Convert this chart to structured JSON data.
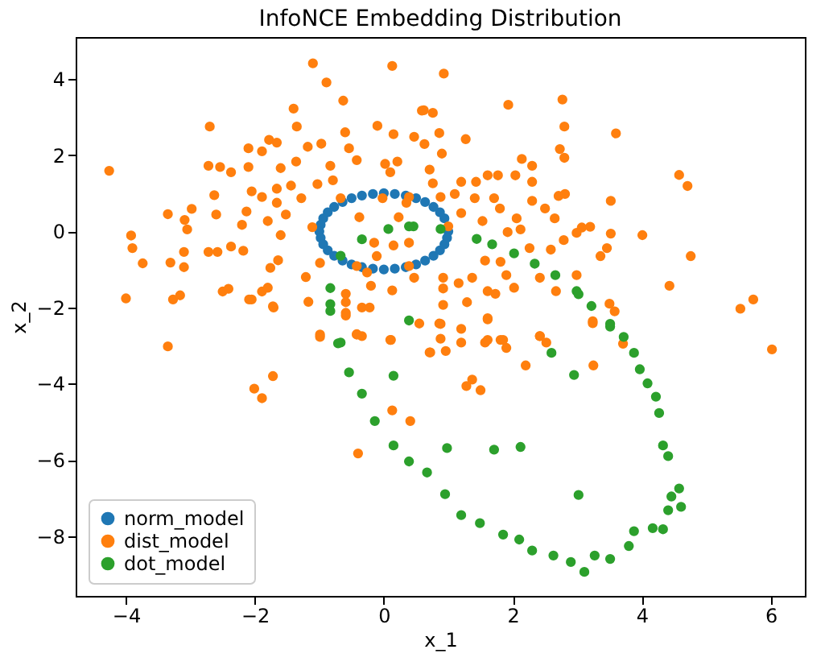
{
  "chart_data": {
    "type": "scatter",
    "title": "InfoNCE Embedding Distribution",
    "xlabel": "x_1",
    "ylabel": "x_2",
    "xlim": [
      -4.78,
      6.53
    ],
    "ylim": [
      -9.57,
      5.1
    ],
    "xticks": [
      -4,
      -2,
      0,
      2,
      4,
      6
    ],
    "yticks": [
      -8,
      -6,
      -4,
      -2,
      0,
      2,
      4
    ],
    "grid": false,
    "legend": "bottom left",
    "marker": "circle",
    "series": [
      {
        "name": "norm_model",
        "color": "#1f77b4",
        "x": [
          1,
          0.94,
          0.87,
          0.77,
          0.64,
          0.5,
          0.34,
          0.17,
          0,
          -0.17,
          -0.34,
          -0.5,
          -0.64,
          -0.77,
          -0.87,
          -0.94,
          -0.98,
          -1,
          -0.98,
          -0.94,
          -0.87,
          -0.77,
          -0.64,
          -0.5,
          -0.34,
          -0.17,
          0,
          0.17,
          0.34,
          0.5,
          0.64,
          0.77,
          0.87,
          0.94,
          0.98
        ],
        "values": [
          0,
          0.34,
          0.5,
          0.64,
          0.77,
          0.87,
          0.94,
          0.98,
          1,
          0.98,
          0.94,
          0.87,
          0.77,
          0.64,
          0.5,
          0.34,
          0.17,
          0,
          -0.17,
          -0.34,
          -0.5,
          -0.64,
          -0.77,
          -0.87,
          -0.94,
          -0.98,
          -1,
          -0.98,
          -0.94,
          -0.87,
          -0.77,
          -0.64,
          -0.5,
          -0.34,
          -0.17
        ]
      },
      {
        "name": "dist_model",
        "color": "#ff7f0e",
        "x": [
          -4.26,
          -1.1,
          -0.89,
          -0.63,
          -1.4,
          -1.35,
          -2.7,
          -1.78,
          -1.66,
          -2.1,
          -1.89,
          -1.18,
          -0.97,
          -0.6,
          -0.54,
          -0.42,
          -2.72,
          -2.54,
          -2.37,
          -2.1,
          -1.6,
          -1.36,
          -0.83,
          -2.63,
          -2.05,
          -1.89,
          -1.66,
          -1.44,
          -1.28,
          -1.03,
          -0.79,
          -0.67,
          -1.66,
          -3.35,
          -3.09,
          -2.98,
          -3.05,
          -2.6,
          -2.13,
          -1.8,
          -1.52,
          -2.2,
          -1.11,
          -3.92,
          -3.9,
          -3.74,
          -3.31,
          -3.1,
          -3.1,
          -2.72,
          -2.58,
          -2.37,
          -2.18,
          -1.6,
          -1.64,
          -1.76,
          -4.0,
          -3.27,
          -3.16,
          -2.5,
          -2.41,
          -2.05,
          -1.89,
          -1.8,
          -1.71,
          -1.21,
          -1.17,
          -0.99,
          -0.99,
          -3.35,
          -0.42,
          -0.26,
          -0.2,
          -0.34,
          -0.22,
          -0.59,
          -0.59,
          -0.42,
          -0.34,
          0.1,
          0.13,
          -0.11,
          -0.15,
          0.15,
          0.39,
          0.47,
          0.39,
          0.23,
          -0.38,
          -0.02,
          0.1,
          0.02,
          -0.1,
          0.15,
          0.21,
          0.47,
          0.59,
          0.13,
          0.39,
          0.35,
          0.93,
          1.93,
          2.77,
          0.62,
          0.76,
          2.8,
          1.27,
          0.86,
          0.63,
          0.9,
          3.6,
          2.73,
          2.8,
          2.14,
          2.3,
          2.3,
          2.04,
          1.61,
          1.77,
          1.43,
          1.2,
          0.71,
          0.76,
          1.1,
          1.41,
          0.88,
          1.71,
          1.8,
          2.3,
          2.5,
          2.71,
          2.81,
          2.65,
          3.52,
          4.58,
          4.71,
          2.06,
          1.2,
          1.53,
          1.0,
          2.12,
          1.92,
          3.07,
          3.2,
          2.99,
          2.79,
          3.52,
          4.01,
          3.46,
          3.36,
          2.59,
          2.26,
          1.57,
          1.81,
          1.9,
          1.37,
          1.16,
          0.92,
          0.92,
          0.92,
          1.29,
          1.61,
          1.73,
          2.02,
          2.42,
          2.67,
          2.99,
          4.76,
          4.43,
          5.53,
          5.73,
          6.02,
          1.61,
          1.2,
          0.86,
          0.55,
          0.88,
          0.71,
          1.57,
          1.81,
          1.9,
          2.42,
          3.24,
          -2.01,
          -1.89,
          -1.72,
          -0.99,
          -1.72,
          -2.09,
          -0.4,
          0.13,
          0.41,
          0.11,
          0.72,
          0.96,
          0.88,
          1.2,
          1.28,
          1.37,
          1.5,
          1.61,
          1.61,
          1.85,
          2.2,
          2.42,
          2.52,
          3.25,
          3.24,
          3.5,
          3.58,
          3.71,
          -0.59,
          -0.59,
          -0.42
        ],
        "values": [
          1.59,
          4.41,
          3.91,
          3.43,
          3.22,
          2.75,
          2.75,
          2.4,
          2.33,
          2.18,
          2.1,
          2.22,
          2.3,
          2.6,
          2.18,
          1.87,
          1.72,
          1.69,
          1.55,
          1.69,
          1.66,
          1.83,
          1.72,
          0.95,
          1.05,
          0.9,
          1.12,
          1.2,
          0.87,
          1.24,
          1.34,
          0.87,
          0.75,
          0.45,
          0.3,
          0.59,
          0.05,
          0.44,
          0.52,
          0.27,
          0.44,
          0.17,
          0.11,
          -0.11,
          -0.44,
          -0.84,
          -0.82,
          -0.54,
          -0.94,
          -0.54,
          -0.54,
          -0.4,
          -0.51,
          -0.1,
          -0.76,
          -0.96,
          -1.76,
          -1.79,
          -1.68,
          -1.58,
          -1.51,
          -1.79,
          -1.58,
          -1.48,
          -2.0,
          -1.2,
          -1.85,
          -0.83,
          -2.77,
          -3.02,
          -0.91,
          -1.08,
          -1.43,
          -2.0,
          -2.0,
          -1.64,
          -2.21,
          -2.7,
          -2.75,
          -2.85,
          -1.55,
          -0.65,
          -0.3,
          -0.37,
          -0.91,
          -1.22,
          -0.3,
          0.37,
          0.37,
          0.87,
          1.55,
          1.77,
          2.77,
          2.55,
          1.83,
          2.48,
          3.17,
          4.34,
          0.9,
          0.75,
          4.14,
          3.32,
          3.46,
          3.18,
          3.11,
          2.75,
          2.42,
          2.58,
          2.29,
          2.04,
          2.57,
          2.16,
          1.93,
          1.9,
          1.72,
          1.3,
          1.47,
          1.47,
          1.47,
          1.3,
          1.3,
          1.62,
          1.26,
          0.98,
          0.87,
          0.9,
          0.87,
          0.6,
          0.8,
          0.6,
          0.93,
          0.98,
          0.34,
          0.8,
          1.48,
          1.19,
          0.34,
          0.48,
          0.27,
          0.13,
          0.05,
          -0.02,
          0.1,
          0.12,
          -0.04,
          -0.23,
          -0.06,
          -0.1,
          -0.44,
          -0.65,
          -0.48,
          -0.44,
          -0.77,
          -0.8,
          -1.15,
          -1.22,
          -1.36,
          -1.22,
          -1.5,
          -1.93,
          -1.86,
          -1.57,
          -1.64,
          -1.48,
          -1.22,
          -1.57,
          -1.15,
          -0.65,
          -1.43,
          -2.03,
          -1.79,
          -3.1,
          -2.31,
          -2.56,
          -2.42,
          -2.42,
          -2.82,
          -3.18,
          -2.92,
          -2.85,
          -3.06,
          -2.75,
          -2.41,
          -4.13,
          -4.38,
          -3.8,
          -2.71,
          -1.97,
          -1.79,
          -5.83,
          -4.7,
          -4.98,
          -2.85,
          -3.18,
          -3.14,
          -2.43,
          -2.92,
          -4.06,
          -3.89,
          -4.17,
          -2.28,
          -2.85,
          -2.85,
          -3.52,
          -2.75,
          -2.92,
          -3.52,
          -2.36,
          -1.9,
          -2.1,
          -2.95,
          -1.86,
          -2.14,
          -2.71
        ]
      },
      {
        "name": "dot_model",
        "color": "#2ca02c",
        "x": [
          -0.83,
          -0.67,
          -0.34,
          0.07,
          0.46,
          0.39,
          0.88,
          1.44,
          1.68,
          2.02,
          2.34,
          2.66,
          2.99,
          3.22,
          3.51,
          3.88,
          -0.83,
          -0.83,
          -0.71,
          -0.54,
          -0.34,
          -0.14,
          0.15,
          0.39,
          0.67,
          0.95,
          1.2,
          1.49,
          1.85,
          2.1,
          2.3,
          2.63,
          2.9,
          3.11,
          3.27,
          3.51,
          3.8,
          3.88,
          4.17,
          4.33,
          4.41,
          4.46,
          4.58,
          4.61,
          4.41,
          4.33,
          4.27,
          4.22,
          4.09,
          3.97,
          3.72,
          3.51,
          3.02,
          0.15,
          0.98,
          1.71,
          2.12,
          3.02,
          2.95,
          2.6,
          0.39,
          -0.67
        ],
        "values": [
          -1.49,
          -0.64,
          -0.21,
          0.06,
          0.13,
          0.13,
          0.06,
          -0.2,
          -0.34,
          -0.58,
          -0.85,
          -1.15,
          -1.57,
          -1.96,
          -2.5,
          -3.19,
          -1.91,
          -2.09,
          -2.94,
          -3.7,
          -4.26,
          -4.98,
          -5.62,
          -6.04,
          -6.33,
          -6.9,
          -7.45,
          -7.66,
          -7.96,
          -8.09,
          -8.38,
          -8.51,
          -8.68,
          -8.94,
          -8.51,
          -8.6,
          -8.26,
          -7.87,
          -7.79,
          -7.82,
          -7.32,
          -6.96,
          -6.75,
          -7.23,
          -5.9,
          -5.62,
          -4.77,
          -4.34,
          -3.99,
          -3.62,
          -2.77,
          -2.43,
          -1.65,
          -3.79,
          -5.69,
          -5.73,
          -5.66,
          -6.92,
          -3.77,
          -3.19,
          -2.34,
          -2.92
        ]
      }
    ]
  }
}
